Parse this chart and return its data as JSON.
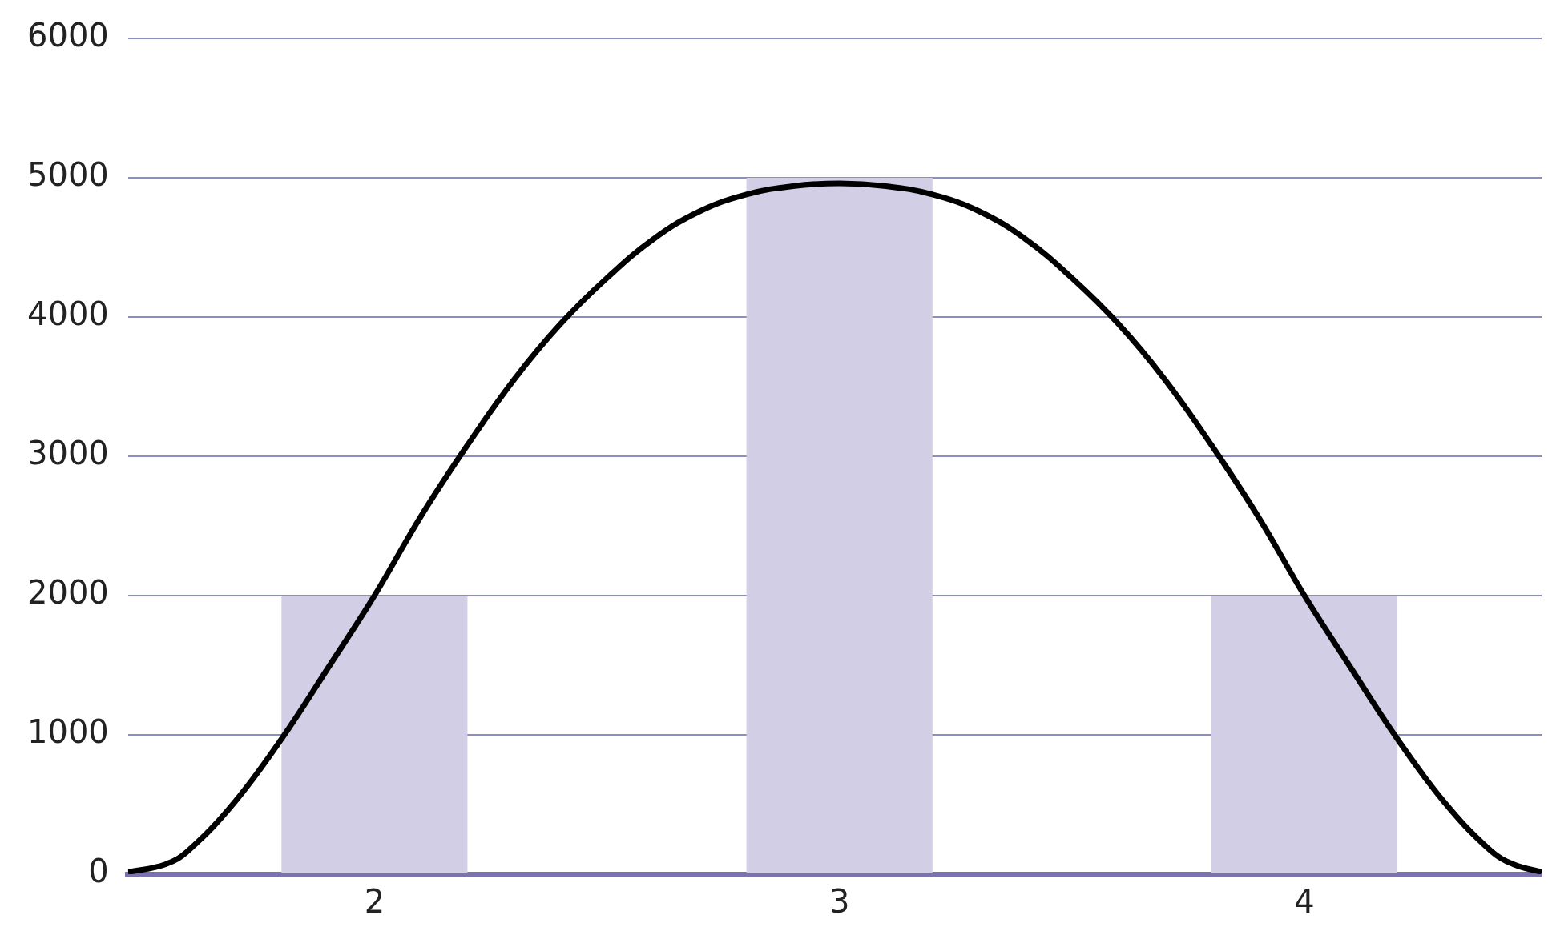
{
  "chart_data": {
    "type": "bar",
    "xlim": [
      1.47,
      4.51
    ],
    "xticks": [
      2,
      3,
      4
    ],
    "ylim": [
      0,
      6000
    ],
    "yticks": [
      0,
      1000,
      2000,
      3000,
      4000,
      5000,
      6000
    ],
    "grid": "y",
    "legend": false,
    "series": [
      {
        "x": [
          2,
          3,
          4
        ],
        "values": [
          2000,
          5000,
          2000
        ],
        "color": "#d2cee6"
      },
      {
        "type": "line",
        "color": "#000000",
        "marker": "none",
        "x": [
          1.47,
          1.55,
          1.6,
          1.7,
          1.8,
          1.9,
          2.0,
          2.1,
          2.2,
          2.3,
          2.4,
          2.5,
          2.6,
          2.7,
          2.8,
          2.9,
          3.0,
          3.1,
          3.2,
          3.3,
          3.4,
          3.5,
          3.6,
          3.7,
          3.8,
          3.9,
          4.0,
          4.1,
          4.2,
          4.3,
          4.4,
          4.45,
          4.51
        ],
        "values": [
          15,
          70,
          170,
          520,
          970,
          1480,
          2000,
          2570,
          3080,
          3550,
          3950,
          4280,
          4560,
          4760,
          4880,
          4940,
          4960,
          4940,
          4880,
          4760,
          4560,
          4280,
          3950,
          3550,
          3080,
          2570,
          2000,
          1480,
          970,
          520,
          170,
          70,
          15
        ]
      }
    ]
  }
}
